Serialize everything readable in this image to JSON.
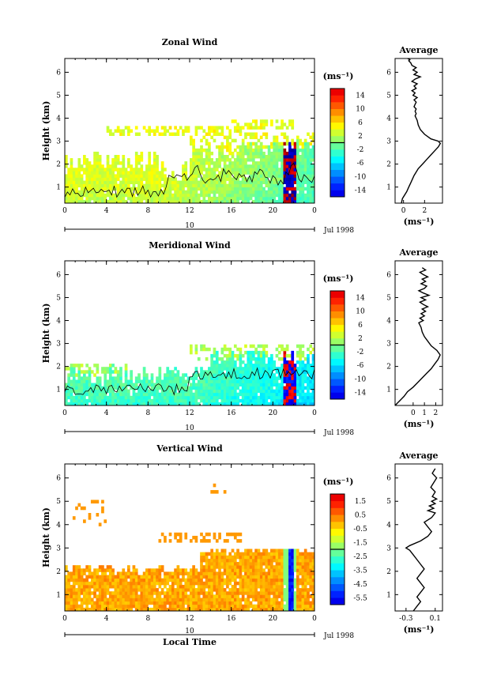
{
  "panels": [
    {
      "title": "Zonal Wind",
      "ylabel": "Height (km)",
      "xticks": [
        "0",
        "4",
        "8",
        "12",
        "16",
        "20",
        "0"
      ],
      "yticks": [
        "1",
        "2",
        "3",
        "4",
        "5",
        "6"
      ],
      "day": "10",
      "month_label": "Jul 1998",
      "unit": "(ms⁻¹)",
      "cbar_ticks": [
        "14",
        "10",
        "6",
        "2",
        "-2",
        "-6",
        "-10",
        "-14"
      ],
      "avg_title": "Average",
      "avg_xticks": [
        "0",
        "2"
      ],
      "avg_unit": "(ms⁻¹)",
      "avg_profile": {
        "x": [
          -0.2,
          -0.1,
          0.3,
          0.5,
          0.7,
          1.0,
          1.4,
          1.8,
          2.2,
          2.6,
          3.0,
          3.3,
          3.5,
          3.3,
          2.6,
          2.0,
          1.6,
          1.4,
          1.3,
          1.2,
          1.1,
          1.2,
          1.1,
          1.2,
          1.0,
          1.1,
          1.2,
          1.0,
          1.3,
          0.9,
          1.1,
          0.8,
          1.2,
          1.0,
          1.3,
          0.8,
          1.1,
          1.6,
          1.0,
          1.3,
          0.9,
          1.2,
          0.8,
          0.7,
          0.5,
          0.6,
          0.4
        ],
        "y": [
          0.3,
          0.5,
          0.8,
          1.0,
          1.2,
          1.5,
          1.8,
          2.0,
          2.2,
          2.4,
          2.6,
          2.75,
          2.9,
          3.0,
          3.1,
          3.3,
          3.5,
          3.7,
          3.9,
          4.0,
          4.1,
          4.2,
          4.3,
          4.4,
          4.5,
          4.6,
          4.7,
          4.8,
          4.9,
          5.0,
          5.1,
          5.2,
          5.3,
          5.4,
          5.5,
          5.6,
          5.7,
          5.8,
          5.9,
          6.0,
          6.1,
          6.2,
          6.3,
          6.4,
          6.5,
          6.55,
          6.6
        ],
        "xlim": [
          -0.8,
          3.7
        ],
        "ylim": [
          0.3,
          6.6
        ]
      }
    },
    {
      "title": "Meridional Wind",
      "ylabel": "Height (km)",
      "xticks": [
        "0",
        "4",
        "8",
        "12",
        "16",
        "20",
        "0"
      ],
      "yticks": [
        "1",
        "2",
        "3",
        "4",
        "5",
        "6"
      ],
      "day": "10",
      "month_label": "Jul 1998",
      "unit": "(ms⁻¹)",
      "cbar_ticks": [
        "14",
        "10",
        "6",
        "2",
        "-2",
        "-6",
        "-10",
        "-14"
      ],
      "avg_title": "Average",
      "avg_xticks": [
        "0",
        "1",
        "2"
      ],
      "avg_unit": "(ms⁻¹)",
      "avg_profile": {
        "x": [
          -1.6,
          -1.2,
          -0.8,
          -0.5,
          0.0,
          0.4,
          0.8,
          1.2,
          1.6,
          1.9,
          2.2,
          2.4,
          2.1,
          1.6,
          1.3,
          1.0,
          0.8,
          0.7,
          0.5,
          0.9,
          0.6,
          1.0,
          0.7,
          1.1,
          0.8,
          1.3,
          0.9,
          0.6,
          1.1,
          0.7,
          1.4,
          0.9,
          0.5,
          1.0,
          1.2,
          0.7,
          1.1,
          0.8,
          1.3,
          0.9,
          0.6,
          1.1,
          0.8
        ],
        "y": [
          0.3,
          0.5,
          0.7,
          0.9,
          1.1,
          1.3,
          1.5,
          1.7,
          1.9,
          2.1,
          2.3,
          2.5,
          2.7,
          2.9,
          3.1,
          3.3,
          3.5,
          3.7,
          3.9,
          4.0,
          4.1,
          4.2,
          4.3,
          4.4,
          4.5,
          4.6,
          4.7,
          4.8,
          4.9,
          5.0,
          5.1,
          5.2,
          5.3,
          5.4,
          5.5,
          5.6,
          5.7,
          5.8,
          5.9,
          6.0,
          6.1,
          6.2,
          6.3
        ],
        "xlim": [
          -1.6,
          2.6
        ],
        "ylim": [
          0.3,
          6.6
        ]
      }
    },
    {
      "title": "Vertical Wind",
      "ylabel": "Height (km)",
      "xticks": [
        "0",
        "4",
        "8",
        "12",
        "16",
        "20",
        "0"
      ],
      "yticks": [
        "1",
        "2",
        "3",
        "4",
        "5",
        "6"
      ],
      "day": "10",
      "month_label": "Jul 1998",
      "xlabel": "Local Time",
      "unit": "(ms⁻¹)",
      "cbar_ticks": [
        "1.5",
        "0.5",
        "-0.5",
        "-1.5",
        "-2.5",
        "-3.5",
        "-4.5",
        "-5.5"
      ],
      "avg_title": "Average",
      "avg_xticks": [
        "-0.3",
        "0.1"
      ],
      "avg_unit": "(ms⁻¹)",
      "avg_profile": {
        "x": [
          -0.2,
          -0.15,
          -0.1,
          -0.15,
          -0.1,
          -0.05,
          -0.1,
          -0.15,
          -0.1,
          -0.05,
          -0.1,
          -0.15,
          -0.2,
          -0.25,
          -0.3,
          -0.25,
          -0.1,
          0.0,
          0.05,
          0.0,
          -0.05,
          0.05,
          0.1,
          0.0,
          0.08,
          0.02,
          0.1,
          0.05,
          0.12,
          0.06,
          0.1,
          0.04,
          0.08,
          0.12,
          0.06,
          0.1
        ],
        "y": [
          0.3,
          0.5,
          0.7,
          0.9,
          1.1,
          1.3,
          1.5,
          1.7,
          1.9,
          2.1,
          2.3,
          2.5,
          2.7,
          2.9,
          3.0,
          3.1,
          3.3,
          3.5,
          3.7,
          3.9,
          4.1,
          4.3,
          4.5,
          4.6,
          4.7,
          4.8,
          4.9,
          5.0,
          5.1,
          5.2,
          5.4,
          5.6,
          5.8,
          6.0,
          6.2,
          6.4
        ],
        "xlim": [
          -0.45,
          0.2
        ],
        "ylim": [
          0.3,
          6.6
        ]
      }
    }
  ],
  "chart_data": [
    {
      "type": "heatmap",
      "title": "Zonal Wind",
      "xlabel": "",
      "ylabel": "Height (km)",
      "xlim": [
        0,
        24
      ],
      "ylim": [
        0.3,
        6.6
      ],
      "xticks": [
        0,
        4,
        8,
        12,
        16,
        20,
        24
      ],
      "yticks": [
        1,
        2,
        3,
        4,
        5,
        6
      ],
      "colorbar": {
        "label": "(ms⁻¹)",
        "ticks": [
          14,
          10,
          6,
          2,
          -2,
          -6,
          -10,
          -14
        ],
        "range": [
          -16,
          16
        ]
      }
    },
    {
      "type": "heatmap",
      "title": "Meridional Wind",
      "xlabel": "",
      "ylabel": "Height (km)",
      "xlim": [
        0,
        24
      ],
      "ylim": [
        0.3,
        6.6
      ],
      "xticks": [
        0,
        4,
        8,
        12,
        16,
        20,
        24
      ],
      "yticks": [
        1,
        2,
        3,
        4,
        5,
        6
      ],
      "colorbar": {
        "label": "(ms⁻¹)",
        "ticks": [
          14,
          10,
          6,
          2,
          -2,
          -6,
          -10,
          -14
        ],
        "range": [
          -16,
          16
        ]
      }
    },
    {
      "type": "heatmap",
      "title": "Vertical Wind",
      "xlabel": "Local Time",
      "ylabel": "Height (km)",
      "xlim": [
        0,
        24
      ],
      "ylim": [
        0.3,
        6.6
      ],
      "xticks": [
        0,
        4,
        8,
        12,
        16,
        20,
        24
      ],
      "yticks": [
        1,
        2,
        3,
        4,
        5,
        6
      ],
      "colorbar": {
        "label": "(ms⁻¹)",
        "ticks": [
          1.5,
          0.5,
          -0.5,
          -1.5,
          -2.5,
          -3.5,
          -4.5,
          -5.5
        ],
        "range": [
          -6,
          2
        ]
      }
    }
  ]
}
